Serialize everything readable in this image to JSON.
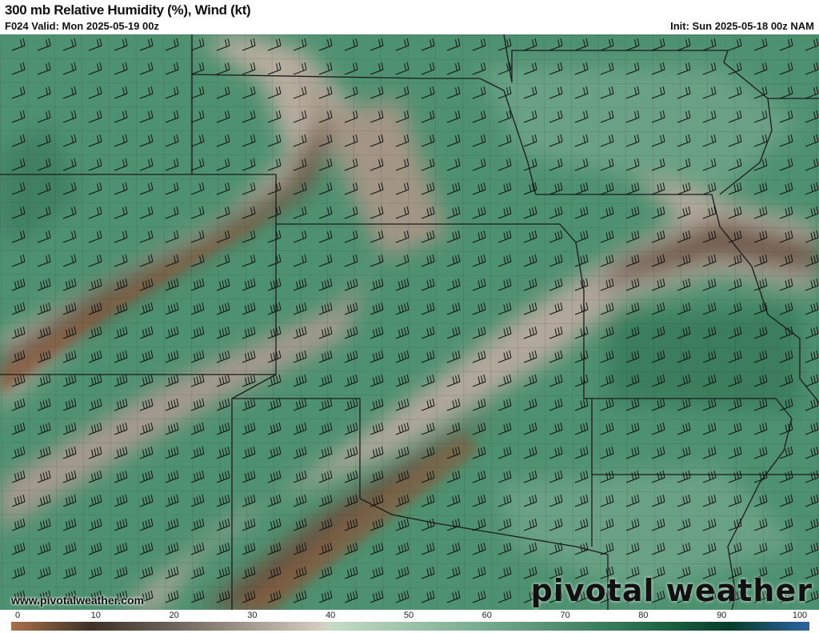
{
  "header": {
    "title": "300 mb Relative Humidity (%), Wind (kt)",
    "valid": "F024 Valid: Mon 2025-05-19 00z",
    "init": "Init: Sun 2025-05-18 00z NAM"
  },
  "footer": {
    "website": "www.pivotalweather.com",
    "logo": "pivotal weather"
  },
  "colorbar": {
    "ticks": [
      "0",
      "10",
      "20",
      "30",
      "40",
      "50",
      "60",
      "70",
      "80",
      "90",
      "100"
    ],
    "stops": [
      {
        "v": 0,
        "c": "#a8714a"
      },
      {
        "v": 10,
        "c": "#3f3128"
      },
      {
        "v": 20,
        "c": "#6b6158"
      },
      {
        "v": 30,
        "c": "#a59b90"
      },
      {
        "v": 39,
        "c": "#d6cdc2"
      },
      {
        "v": 40,
        "c": "#c4dcc4"
      },
      {
        "v": 60,
        "c": "#74a88c"
      },
      {
        "v": 80,
        "c": "#256a4a"
      },
      {
        "v": 90,
        "c": "#073d28"
      },
      {
        "v": 100,
        "c": "#2d63a3"
      }
    ]
  },
  "colors": {
    "moist": "#4e9170",
    "dry": "#7a5a42",
    "border": "#1a1a1a"
  }
}
